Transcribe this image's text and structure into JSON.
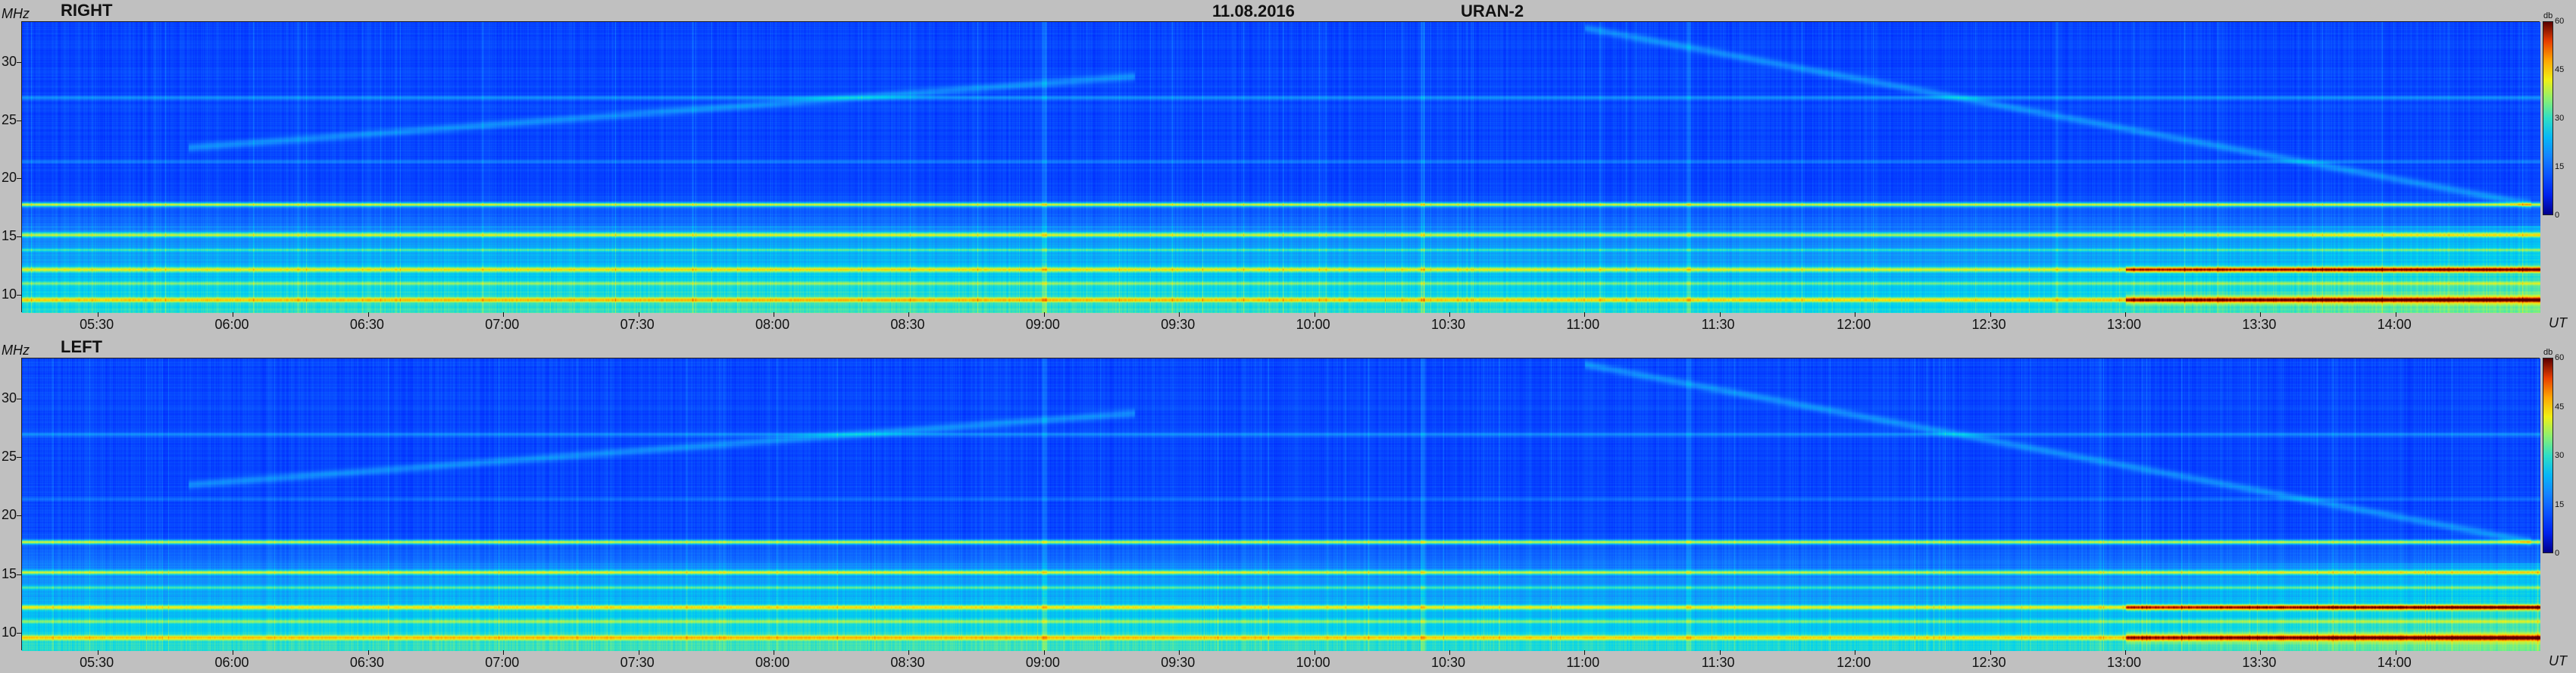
{
  "header": {
    "date": "11.08.2016",
    "station": "URAN-2"
  },
  "chart_data": [
    {
      "type": "heatmap",
      "title": "RIGHT",
      "ylabel": "MHz",
      "xlabel": "UT",
      "ylim": [
        8.5,
        33.5
      ],
      "xlim": [
        "05:13",
        "14:32"
      ],
      "y_ticks": [
        "10",
        "15",
        "20",
        "25",
        "30"
      ],
      "x_ticks": [
        "05:30",
        "06:00",
        "06:30",
        "07:00",
        "07:30",
        "08:00",
        "08:30",
        "09:00",
        "09:30",
        "10:00",
        "10:30",
        "11:00",
        "11:30",
        "12:00",
        "12:30",
        "13:00",
        "13:30",
        "14:00"
      ],
      "colorbar": {
        "unit": "db",
        "range": [
          0,
          60
        ],
        "ticks": [
          "0",
          "15",
          "30",
          "45",
          "60"
        ]
      }
    },
    {
      "type": "heatmap",
      "title": "LEFT",
      "ylabel": "MHz",
      "xlabel": "UT",
      "ylim": [
        8.5,
        33.5
      ],
      "xlim": [
        "05:13",
        "14:32"
      ],
      "y_ticks": [
        "10",
        "15",
        "20",
        "25",
        "30"
      ],
      "x_ticks": [
        "05:30",
        "06:00",
        "06:30",
        "07:00",
        "07:30",
        "08:00",
        "08:30",
        "09:00",
        "09:30",
        "10:00",
        "10:30",
        "11:00",
        "11:30",
        "12:00",
        "12:30",
        "13:00",
        "13:30",
        "14:00"
      ],
      "colorbar": {
        "unit": "db",
        "range": [
          0,
          60
        ],
        "ticks": [
          "0",
          "15",
          "30",
          "45",
          "60"
        ]
      }
    }
  ]
}
